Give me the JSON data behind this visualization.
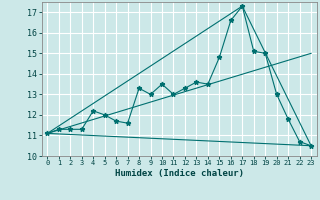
{
  "xlabel": "Humidex (Indice chaleur)",
  "bg_color": "#cce8e8",
  "grid_color": "#ffffff",
  "line_color": "#007070",
  "xlim": [
    -0.5,
    23.5
  ],
  "ylim": [
    10,
    17.5
  ],
  "yticks": [
    10,
    11,
    12,
    13,
    14,
    15,
    16,
    17
  ],
  "xticks": [
    0,
    1,
    2,
    3,
    4,
    5,
    6,
    7,
    8,
    9,
    10,
    11,
    12,
    13,
    14,
    15,
    16,
    17,
    18,
    19,
    20,
    21,
    22,
    23
  ],
  "lines": [
    {
      "x": [
        0,
        1,
        2,
        3,
        4,
        5,
        6,
        7,
        8,
        9,
        10,
        11,
        12,
        13,
        14,
        15,
        16,
        17,
        18,
        19,
        20,
        21,
        22,
        23
      ],
      "y": [
        11.1,
        11.3,
        11.3,
        11.3,
        12.2,
        12.0,
        11.7,
        11.6,
        13.3,
        13.0,
        13.5,
        13.0,
        13.3,
        13.6,
        13.5,
        14.8,
        16.6,
        17.3,
        15.1,
        15.0,
        13.0,
        11.8,
        10.7,
        10.5
      ],
      "marker": true
    },
    {
      "x": [
        0,
        23
      ],
      "y": [
        11.1,
        15.0
      ],
      "marker": false
    },
    {
      "x": [
        0,
        17,
        23
      ],
      "y": [
        11.1,
        17.3,
        10.5
      ],
      "marker": false
    },
    {
      "x": [
        0,
        23
      ],
      "y": [
        11.1,
        10.5
      ],
      "marker": false
    }
  ]
}
